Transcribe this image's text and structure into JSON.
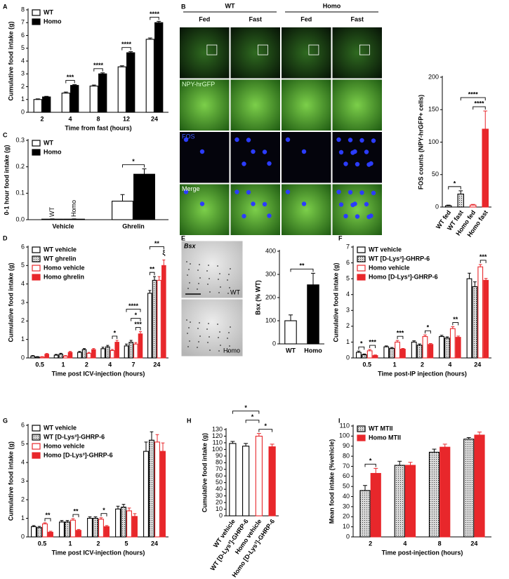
{
  "chart_data": [
    {
      "panel": "A",
      "type": "bar",
      "ylabel": "Cumulative food intake (g)",
      "xlabel": "Time from fast (hours)",
      "categories": [
        "2",
        "4",
        "8",
        "12",
        "24"
      ],
      "series": [
        {
          "name": "WT",
          "color": "#000000",
          "fill": "#ffffff",
          "values": [
            1.0,
            1.5,
            2.05,
            3.55,
            5.7
          ],
          "errors": [
            0.05,
            0.08,
            0.08,
            0.08,
            0.1
          ]
        },
        {
          "name": "Homo",
          "color": "#000000",
          "fill": "#000000",
          "values": [
            1.2,
            2.1,
            3.0,
            4.65,
            7.0
          ],
          "errors": [
            0.05,
            0.06,
            0.08,
            0.08,
            0.1
          ]
        }
      ],
      "ylim": [
        0,
        8
      ],
      "yticks": [
        0,
        1,
        2,
        3,
        4,
        5,
        6,
        7,
        8
      ],
      "legend": "upper left",
      "annotations": [
        "***",
        "****",
        "****",
        "****"
      ]
    },
    {
      "panel": "B",
      "type": "bar",
      "column_groups": [
        "WT",
        "Homo"
      ],
      "columns": [
        "Fed",
        "Fast",
        "Fed",
        "Fast"
      ],
      "row_labels": [
        "NPY-hrGFP",
        "FOS",
        "Merge"
      ],
      "ylabel": "FOS counts (NPY-hrGFP+ cells)",
      "categories": [
        "WT fed",
        "WT fast",
        "Homo fed",
        "Homo fast"
      ],
      "values": [
        2,
        20,
        3,
        120
      ],
      "errors": [
        1,
        5,
        1,
        28
      ],
      "colors": [
        "#000000",
        "#000000",
        "#e8272b",
        "#e8272b"
      ],
      "fills": [
        "#ffffff",
        "hatch",
        "#ffffff",
        "#e8272b"
      ],
      "ylim": [
        0,
        200
      ],
      "yticks": [
        0,
        50,
        100,
        150,
        200
      ],
      "rotate_xlabels": true,
      "annotations": [
        "*",
        "****",
        "****"
      ]
    },
    {
      "panel": "C",
      "type": "bar",
      "ylabel": "0-1 hour food intake (g)",
      "categories": [
        "Vehicle",
        "Ghrelin"
      ],
      "inbar_labels": [
        "WT",
        "Homo"
      ],
      "series": [
        {
          "name": "WT",
          "color": "#000000",
          "fill": "#ffffff",
          "values": [
            0.002,
            0.07
          ],
          "errors": [
            0.001,
            0.025
          ]
        },
        {
          "name": "Homo",
          "color": "#000000",
          "fill": "#000000",
          "values": [
            0.002,
            0.172
          ],
          "errors": [
            0.001,
            0.02
          ]
        }
      ],
      "ylim": [
        0,
        0.3
      ],
      "yticks": [
        {
          "value": 0,
          "label": "0.0"
        },
        0.1,
        0.2,
        0.3
      ],
      "legend": "upper left",
      "annotations": [
        "*"
      ]
    },
    {
      "panel": "D",
      "type": "bar",
      "ylabel": "Cumulative food intake (g)",
      "xlabel": "Time post ICV-injection (hours)",
      "categories": [
        "0.5",
        "1",
        "2",
        "4",
        "7",
        "24"
      ],
      "series": [
        {
          "name": "WT vehicle",
          "color": "#000000",
          "fill": "#ffffff",
          "values": [
            0.1,
            0.15,
            0.3,
            0.5,
            0.65,
            3.5
          ],
          "errors": [
            0.03,
            0.04,
            0.05,
            0.08,
            0.1,
            0.15
          ]
        },
        {
          "name": "WT ghrelin",
          "color": "#000000",
          "fill": "hatch",
          "values": [
            0.05,
            0.2,
            0.45,
            0.6,
            0.85,
            4.2
          ],
          "errors": [
            0.02,
            0.05,
            0.06,
            0.08,
            0.1,
            0.2
          ]
        },
        {
          "name": "Homo vehicle",
          "color": "#e8272b",
          "fill": "#ffffff",
          "values": [
            0.05,
            0.1,
            0.25,
            0.4,
            0.75,
            4.2
          ],
          "errors": [
            0.02,
            0.03,
            0.05,
            0.06,
            0.08,
            0.2
          ]
        },
        {
          "name": "Homo ghrelin",
          "color": "#e8272b",
          "fill": "#e8272b",
          "values": [
            0.2,
            0.3,
            0.45,
            0.85,
            1.3,
            5.0
          ],
          "errors": [
            0.04,
            0.05,
            0.06,
            0.1,
            0.12,
            0.3
          ]
        }
      ],
      "ylim": [
        0,
        6
      ],
      "yticks": [
        0,
        1,
        2,
        3,
        4,
        5,
        6
      ],
      "legend": "upper left",
      "annotations": [
        "*",
        "****",
        "*",
        "***",
        "**",
        "**",
        "ξ"
      ]
    },
    {
      "panel": "E",
      "type": "bar",
      "stain": "Bsx",
      "image_labels": [
        "WT",
        "Homo"
      ],
      "ylabel": "Bsx (% WT)",
      "categories": [
        "WT",
        "Homo"
      ],
      "values": [
        100,
        255
      ],
      "errors": [
        25,
        50
      ],
      "colors": [
        "#000000",
        "#000000"
      ],
      "fills": [
        "#ffffff",
        "#000000"
      ],
      "ylim": [
        0,
        400
      ],
      "yticks": [
        0,
        100,
        200,
        300,
        400
      ],
      "annotations": [
        "**"
      ]
    },
    {
      "panel": "F",
      "type": "bar",
      "ylabel": "Cumulative food intake (g)",
      "xlabel": "Time post-IP injection (hours)",
      "categories": [
        "0.5",
        "1",
        "2",
        "4",
        "24"
      ],
      "series": [
        {
          "name": "WT vehicle",
          "color": "#000000",
          "fill": "#ffffff",
          "values": [
            0.35,
            0.7,
            1.0,
            1.35,
            5.0
          ],
          "errors": [
            0.08,
            0.06,
            0.08,
            0.08,
            0.35
          ]
        },
        {
          "name": "WT [D-Lys³]-GHRP-6",
          "color": "#000000",
          "fill": "hatch",
          "values": [
            0.2,
            0.6,
            0.8,
            1.25,
            4.5
          ],
          "errors": [
            0.05,
            0.06,
            0.08,
            0.08,
            0.3
          ]
        },
        {
          "name": "Homo vehicle",
          "color": "#e8272b",
          "fill": "#ffffff",
          "values": [
            0.45,
            1.0,
            1.35,
            1.85,
            5.75
          ],
          "errors": [
            0.08,
            0.1,
            0.1,
            0.12,
            0.15
          ]
        },
        {
          "name": "Homo [D-Lys³]-GHRP-6",
          "color": "#e8272b",
          "fill": "#e8272b",
          "values": [
            0.15,
            0.55,
            0.85,
            1.3,
            4.9
          ],
          "errors": [
            0.04,
            0.05,
            0.06,
            0.08,
            0.12
          ]
        }
      ],
      "ylim": [
        0,
        7
      ],
      "yticks": [
        0,
        1,
        2,
        3,
        4,
        5,
        6,
        7
      ],
      "legend": "upper left",
      "annotations": [
        "*",
        "***",
        "***",
        "*",
        "**",
        "***"
      ]
    },
    {
      "panel": "G",
      "type": "bar",
      "ylabel": "Cumulative food intake (g)",
      "xlabel": "Time post ICV-injection (hours)",
      "categories": [
        "0.5",
        "1",
        "2",
        "5",
        "24"
      ],
      "series": [
        {
          "name": "WT vehicle",
          "color": "#000000",
          "fill": "#ffffff",
          "values": [
            0.55,
            0.8,
            1.0,
            1.5,
            4.6
          ],
          "errors": [
            0.06,
            0.08,
            0.08,
            0.15,
            0.5
          ]
        },
        {
          "name": "WT [D-Lys³]-GHRP-6",
          "color": "#000000",
          "fill": "hatch",
          "values": [
            0.5,
            0.8,
            1.0,
            1.6,
            5.2
          ],
          "errors": [
            0.06,
            0.08,
            0.08,
            0.15,
            0.45
          ]
        },
        {
          "name": "Homo vehicle",
          "color": "#e8272b",
          "fill": "#ffffff",
          "values": [
            0.7,
            0.9,
            0.95,
            1.4,
            5.1
          ],
          "errors": [
            0.06,
            0.08,
            0.08,
            0.15,
            0.4
          ]
        },
        {
          "name": "Homo [D-Lys³]-GHRP-6",
          "color": "#e8272b",
          "fill": "#e8272b",
          "values": [
            0.25,
            0.35,
            0.55,
            1.1,
            4.6
          ],
          "errors": [
            0.05,
            0.05,
            0.06,
            0.15,
            0.45
          ]
        }
      ],
      "ylim": [
        0,
        6
      ],
      "yticks": [
        0,
        1,
        2,
        3,
        4,
        5,
        6
      ],
      "legend": "upper left",
      "annotations": [
        "**",
        "**",
        "*"
      ]
    },
    {
      "panel": "H",
      "type": "bar",
      "ylabel": "Cumulative food intake (g)",
      "categories": [
        "WT vehicle",
        "WT [D-Lys³]-GHRP-6",
        "Homo vehicle",
        "Homo [D-Lys³]-GHRP-6"
      ],
      "values": [
        109,
        105,
        120,
        104
      ],
      "errors": [
        3,
        4,
        4,
        4
      ],
      "colors": [
        "#000000",
        "#000000",
        "#e8272b",
        "#e8272b"
      ],
      "fills": [
        "#ffffff",
        "#ffffff",
        "#ffffff",
        "#e8272b"
      ],
      "ylim": [
        0,
        130
      ],
      "yticks": [
        0,
        10,
        20,
        30,
        40,
        50,
        60,
        70,
        80,
        90,
        100,
        110,
        120,
        130
      ],
      "rotate_xlabels": true,
      "annotations": [
        "*",
        "*",
        "*"
      ]
    },
    {
      "panel": "I",
      "type": "bar",
      "ylabel": "Mean food intake (%vehicle)",
      "xlabel": "Time post-injection (hours)",
      "categories": [
        "2",
        "4",
        "8",
        "24"
      ],
      "series": [
        {
          "name": "WT MTII",
          "color": "#000000",
          "fill": "hatch",
          "values": [
            46,
            71,
            84,
            97
          ],
          "errors": [
            5,
            4,
            3,
            1.5
          ]
        },
        {
          "name": "Homo MTII",
          "color": "#e8272b",
          "fill": "#e8272b",
          "values": [
            63,
            71,
            89,
            101
          ],
          "errors": [
            5,
            3,
            3,
            3
          ]
        }
      ],
      "ylim": [
        0,
        110
      ],
      "yticks": [
        0,
        10,
        20,
        30,
        40,
        50,
        60,
        70,
        80,
        90,
        100,
        110
      ],
      "legend": "upper left",
      "annotations": [
        "*"
      ]
    }
  ]
}
